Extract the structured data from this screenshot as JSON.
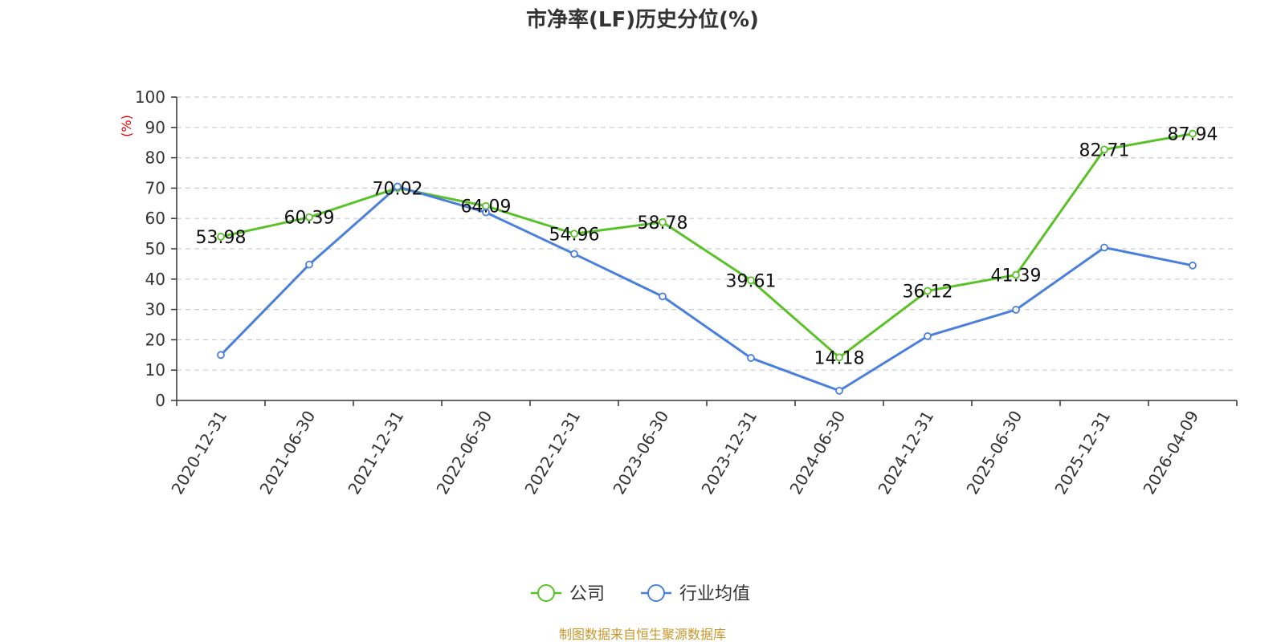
{
  "chart_data": {
    "type": "line",
    "title": "市净率(LF)历史分位(%)",
    "y_unit": "(%)",
    "ylim": [
      0,
      100
    ],
    "y_ticks": [
      0,
      10,
      20,
      30,
      40,
      50,
      60,
      70,
      80,
      90,
      100
    ],
    "grid": true,
    "legend_position": "bottom-center",
    "categories": [
      "2020-12-31",
      "2021-06-30",
      "2021-12-31",
      "2022-06-30",
      "2022-12-31",
      "2023-06-30",
      "2023-12-31",
      "2024-06-30",
      "2024-12-31",
      "2025-06-30",
      "2025-12-31",
      "2026-04-09"
    ],
    "series": [
      {
        "name": "公司",
        "color": "#5ac228",
        "show_labels": true,
        "values": [
          53.98,
          60.39,
          70.02,
          64.09,
          54.96,
          58.78,
          39.61,
          14.18,
          36.12,
          41.39,
          82.71,
          87.94
        ]
      },
      {
        "name": "行业均值",
        "color": "#4a80dc",
        "show_labels": false,
        "values": [
          15.0,
          44.8,
          70.5,
          62.0,
          48.3,
          34.3,
          14.0,
          3.2,
          21.2,
          29.9,
          50.4,
          44.5
        ]
      }
    ]
  },
  "source_note": "制图数据来自恒生聚源数据库"
}
